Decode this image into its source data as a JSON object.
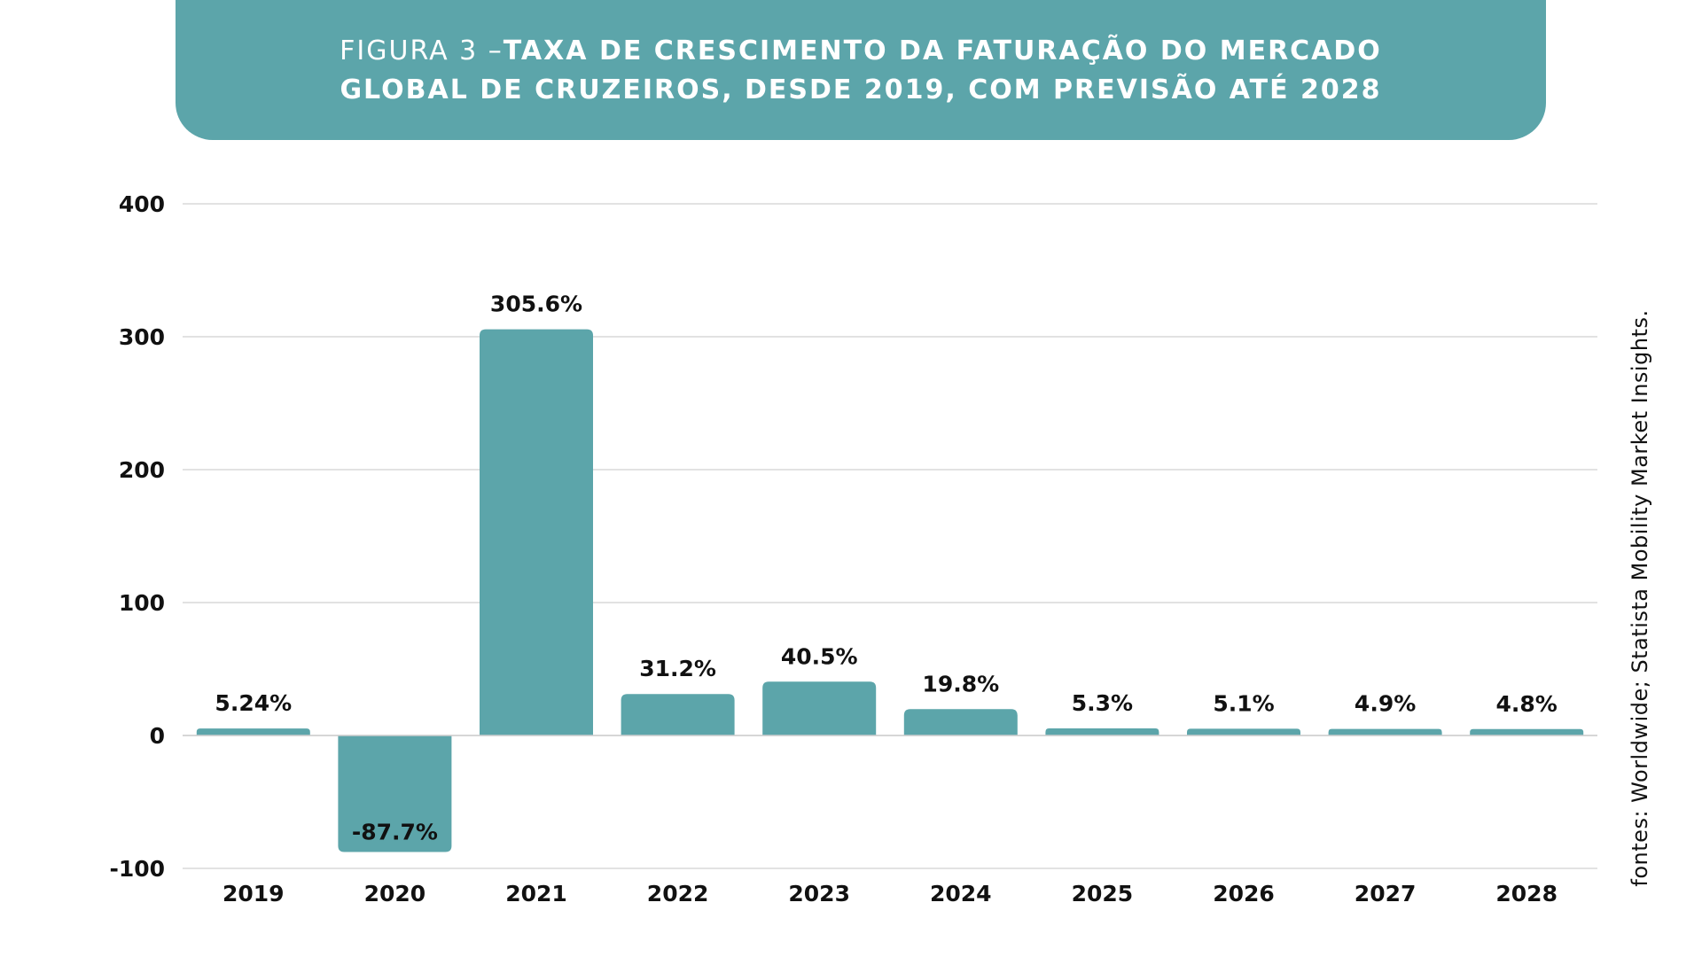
{
  "chart_data": {
    "type": "bar",
    "title_prefix": "FIGURA 3 –",
    "title": "TAXA DE CRESCIMENTO DA FATURAÇÃO DO MERCADO GLOBAL DE CRUZEIROS, DESDE 2019, COM PREVISÃO ATÉ 2028",
    "categories": [
      "2019",
      "2020",
      "2021",
      "2022",
      "2023",
      "2024",
      "2025",
      "2026",
      "2027",
      "2028"
    ],
    "values": [
      5.24,
      -87.7,
      305.6,
      31.2,
      40.5,
      19.8,
      5.3,
      5.1,
      4.9,
      4.8
    ],
    "data_labels": [
      "5.24%",
      "-87.7%",
      "305.6%",
      "31.2%",
      "40.5%",
      "19.8%",
      "5.3%",
      "5.1%",
      "4.9%",
      "4.8%"
    ],
    "ylim": [
      -100,
      400
    ],
    "yticks": [
      -100,
      0,
      100,
      200,
      300,
      400
    ],
    "grid": true,
    "bar_color": "#5ca5aa",
    "source": "fontes: Worldwide; Statista Mobility Market Insights."
  }
}
